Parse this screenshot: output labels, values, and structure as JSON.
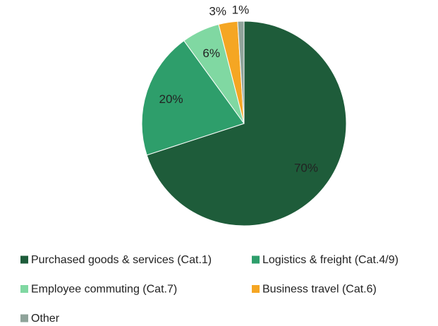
{
  "chart_data": {
    "type": "pie",
    "categories": [
      "Purchased goods & services (Cat.1)",
      "Logistics & freight (Cat.4/9)",
      "Employee commuting (Cat.7)",
      "Business travel (Cat.6)",
      "Other"
    ],
    "values": [
      70,
      20,
      6,
      3,
      1
    ],
    "value_labels": [
      "70%",
      "20%",
      "6%",
      "3%",
      "1%"
    ],
    "colors": [
      "#1e5c3a",
      "#2e9e6b",
      "#80d8a2",
      "#f5a623",
      "#8fa39a"
    ],
    "legend": "bottom"
  }
}
